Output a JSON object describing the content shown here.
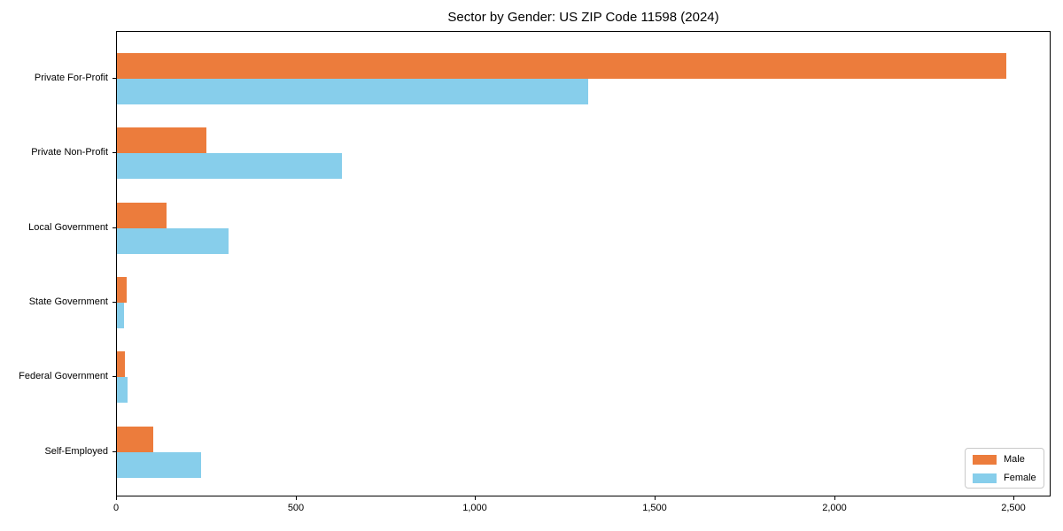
{
  "title": "Sector by Gender: US ZIP Code 11598 (2024)",
  "chart_data": {
    "type": "bar",
    "orientation": "horizontal",
    "title": "Sector by Gender: US ZIP Code 11598 (2024)",
    "categories": [
      "Private For-Profit",
      "Private Non-Profit",
      "Local Government",
      "State Government",
      "Federal Government",
      "Self-Employed"
    ],
    "series": [
      {
        "name": "Male",
        "color": "#ec7c3c",
        "values": [
          2478,
          250,
          139,
          27,
          22,
          102
        ]
      },
      {
        "name": "Female",
        "color": "#87ceeb",
        "values": [
          1313,
          627,
          310,
          20,
          30,
          234
        ]
      }
    ],
    "xlabel": "",
    "ylabel": "",
    "xlim": [
      0,
      2603
    ],
    "xticks": [
      0,
      500,
      1000,
      1500,
      2000,
      2500
    ],
    "xtick_labels": [
      "0",
      "500",
      "1,000",
      "1,500",
      "2,000",
      "2,500"
    ],
    "grid": false,
    "legend_position": "lower right"
  },
  "colors": {
    "male": "#ec7c3c",
    "female": "#87ceeb",
    "spine": "#000000",
    "text": "#000000",
    "legend_border": "#c9c9c9",
    "background": "#ffffff"
  }
}
